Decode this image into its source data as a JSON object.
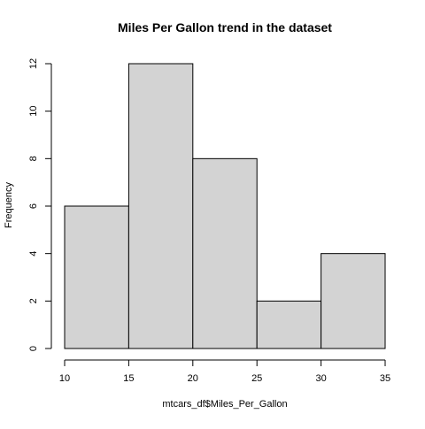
{
  "chart_data": {
    "type": "bar",
    "subtype": "histogram",
    "title": "Miles Per Gallon trend in the dataset",
    "xlabel": "mtcars_df$Miles_Per_Gallon",
    "ylabel": "Frequency",
    "bins": [
      {
        "from": 10,
        "to": 15,
        "count": 6
      },
      {
        "from": 15,
        "to": 20,
        "count": 12
      },
      {
        "from": 20,
        "to": 25,
        "count": 8
      },
      {
        "from": 25,
        "to": 30,
        "count": 2
      },
      {
        "from": 30,
        "to": 35,
        "count": 4
      }
    ],
    "xlim": [
      10,
      35
    ],
    "ylim": [
      0,
      12
    ],
    "xticks": [
      10,
      15,
      20,
      25,
      30,
      35
    ],
    "yticks": [
      0,
      2,
      4,
      6,
      8,
      10,
      12
    ],
    "grid": false,
    "legend": "none",
    "colors": {
      "bar_fill": "#d3d3d3",
      "bar_stroke": "#000000",
      "axis": "#000000",
      "background": "#ffffff"
    }
  }
}
